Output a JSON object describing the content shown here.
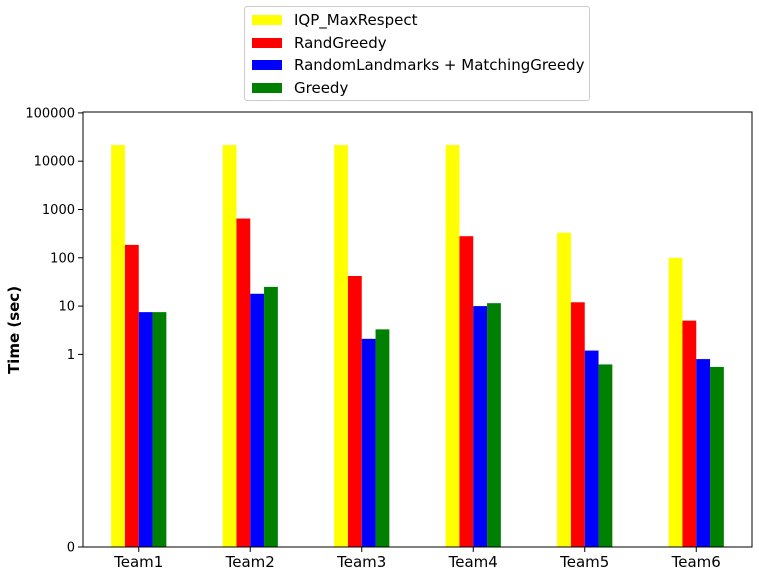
{
  "chart_data": {
    "type": "bar",
    "ylabel": "Time (sec)",
    "xlabel": "",
    "yscale": "log",
    "ylim": [
      0,
      100000
    ],
    "yticks": [
      "0",
      "1",
      "10",
      "100",
      "1000",
      "10000",
      "100000"
    ],
    "categories": [
      "Team1",
      "Team2",
      "Team3",
      "Team4",
      "Team5",
      "Team6"
    ],
    "series": [
      {
        "name": "IQP_MaxRespect",
        "color": "#ffff00",
        "values": [
          21600,
          21600,
          21600,
          21600,
          330,
          100
        ]
      },
      {
        "name": "RandGreedy",
        "color": "#ff0000",
        "values": [
          185,
          650,
          42,
          280,
          12,
          5
        ]
      },
      {
        "name": "RandomLandmarks + MatchingGreedy",
        "color": "#0000ff",
        "values": [
          7.5,
          18,
          2.1,
          10,
          1.2,
          0.8
        ]
      },
      {
        "name": "Greedy",
        "color": "#008000",
        "values": [
          7.5,
          25,
          3.3,
          11.5,
          0.62,
          0.55
        ]
      }
    ],
    "legend_position": "top-center",
    "grid": false
  }
}
